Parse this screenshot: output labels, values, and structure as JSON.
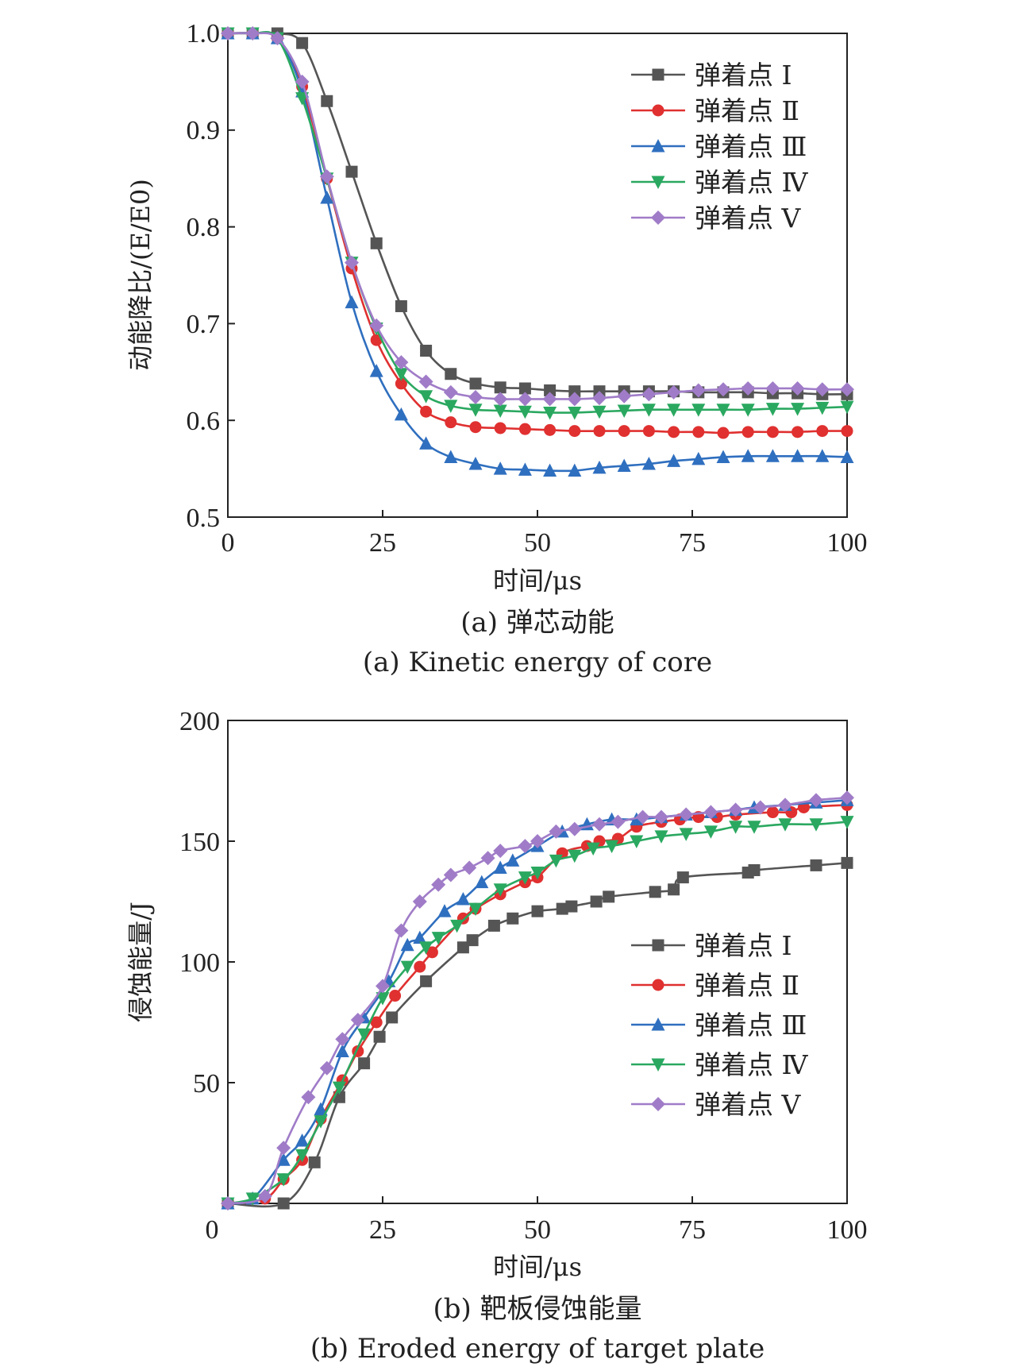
{
  "legend_labels": [
    "弹着点 Ⅰ",
    "弹着点 Ⅱ",
    "弹着点 Ⅲ",
    "弹着点 Ⅳ",
    "弹着点 Ⅴ"
  ],
  "colors": {
    "I": "#555555",
    "II": "#e03030",
    "III": "#2f6fbf",
    "IV": "#2aa860",
    "V": "#a07cc8",
    "axis": "#222222"
  },
  "chart_data": [
    {
      "type": "line",
      "title": "(a) 弹芯动能",
      "subtitle": "(a) Kinetic energy of core",
      "xlabel": "时间/μs",
      "ylabel": "动能降比/(E/E0)",
      "xlim": [
        0,
        100
      ],
      "ylim": [
        0.5,
        1.0
      ],
      "xticks": [
        0,
        25,
        50,
        75,
        100
      ],
      "yticks": [
        0.5,
        0.6,
        0.7,
        0.8,
        0.9,
        1.0
      ],
      "ytick_labels": [
        "0.5",
        "0.6",
        "0.7",
        "0.8",
        "0.9",
        "1.0"
      ],
      "legend_position": "top-right",
      "series": [
        {
          "name": "弹着点 Ⅰ",
          "marker": "square",
          "x": [
            0,
            4,
            8,
            12,
            16,
            20,
            24,
            28,
            32,
            36,
            40,
            44,
            48,
            52,
            56,
            60,
            64,
            68,
            72,
            76,
            80,
            84,
            88,
            92,
            96,
            100
          ],
          "y": [
            1.0,
            1.0,
            1.0,
            0.99,
            0.93,
            0.857,
            0.783,
            0.718,
            0.672,
            0.648,
            0.638,
            0.634,
            0.633,
            0.631,
            0.63,
            0.63,
            0.63,
            0.63,
            0.63,
            0.629,
            0.629,
            0.629,
            0.628,
            0.628,
            0.627,
            0.627
          ]
        },
        {
          "name": "弹着点 Ⅱ",
          "marker": "circle",
          "x": [
            0,
            4,
            8,
            12,
            16,
            20,
            24,
            28,
            32,
            36,
            40,
            44,
            48,
            52,
            56,
            60,
            64,
            68,
            72,
            76,
            80,
            84,
            88,
            92,
            96,
            100
          ],
          "y": [
            1.0,
            1.0,
            0.995,
            0.945,
            0.85,
            0.757,
            0.683,
            0.638,
            0.609,
            0.598,
            0.593,
            0.592,
            0.591,
            0.59,
            0.589,
            0.589,
            0.589,
            0.589,
            0.588,
            0.588,
            0.587,
            0.588,
            0.588,
            0.588,
            0.589,
            0.589
          ]
        },
        {
          "name": "弹着点 Ⅲ",
          "marker": "triangle-up",
          "x": [
            0,
            4,
            8,
            12,
            16,
            20,
            24,
            28,
            32,
            36,
            40,
            44,
            48,
            52,
            56,
            60,
            64,
            68,
            72,
            76,
            80,
            84,
            88,
            92,
            96,
            100
          ],
          "y": [
            1.0,
            1.0,
            0.995,
            0.94,
            0.83,
            0.722,
            0.651,
            0.606,
            0.576,
            0.562,
            0.555,
            0.55,
            0.549,
            0.548,
            0.548,
            0.551,
            0.553,
            0.555,
            0.558,
            0.56,
            0.562,
            0.563,
            0.563,
            0.563,
            0.563,
            0.562
          ]
        },
        {
          "name": "弹着点 Ⅳ",
          "marker": "triangle-down",
          "x": [
            0,
            4,
            8,
            12,
            16,
            20,
            24,
            28,
            32,
            36,
            40,
            44,
            48,
            52,
            56,
            60,
            64,
            68,
            72,
            76,
            80,
            84,
            88,
            92,
            96,
            100
          ],
          "y": [
            1.0,
            1.0,
            0.995,
            0.933,
            0.85,
            0.763,
            0.695,
            0.648,
            0.625,
            0.615,
            0.611,
            0.61,
            0.609,
            0.608,
            0.608,
            0.609,
            0.61,
            0.611,
            0.611,
            0.611,
            0.611,
            0.611,
            0.612,
            0.612,
            0.613,
            0.614
          ]
        },
        {
          "name": "弹着点 Ⅴ",
          "marker": "diamond",
          "x": [
            0,
            4,
            8,
            12,
            16,
            20,
            24,
            28,
            32,
            36,
            40,
            44,
            48,
            52,
            56,
            60,
            64,
            68,
            72,
            76,
            80,
            84,
            88,
            92,
            96,
            100
          ],
          "y": [
            1.0,
            1.0,
            0.995,
            0.95,
            0.852,
            0.763,
            0.698,
            0.66,
            0.64,
            0.629,
            0.624,
            0.622,
            0.622,
            0.622,
            0.622,
            0.623,
            0.625,
            0.627,
            0.629,
            0.631,
            0.632,
            0.633,
            0.633,
            0.633,
            0.632,
            0.632
          ]
        }
      ]
    },
    {
      "type": "line",
      "title": "(b) 靶板侵蚀能量",
      "subtitle": "(b) Eroded energy of target plate",
      "xlabel": "时间/μs",
      "ylabel": "侵蚀能量/J",
      "xlim": [
        0,
        100
      ],
      "ylim": [
        0,
        200
      ],
      "xticks": [
        0,
        25,
        50,
        75,
        100
      ],
      "yticks": [
        50,
        100,
        150,
        200
      ],
      "ytick_labels": [
        "50",
        "100",
        "150",
        "200"
      ],
      "x_origin_label": "0",
      "legend_position": "center-right",
      "series": [
        {
          "name": "弹着点 Ⅰ",
          "marker": "square",
          "x": [
            0,
            9,
            14,
            18,
            22,
            24.5,
            26.5,
            32,
            38,
            39.5,
            43,
            46,
            50,
            54,
            55.5,
            59.5,
            61.5,
            69,
            72,
            73.5,
            84,
            85,
            95,
            100
          ],
          "y": [
            0,
            0,
            17,
            44,
            58,
            69,
            77,
            92,
            106,
            109,
            115,
            118,
            121,
            122,
            123,
            125,
            127,
            129,
            130,
            135,
            137,
            138,
            140,
            141
          ]
        },
        {
          "name": "弹着点 Ⅱ",
          "marker": "circle",
          "x": [
            0,
            6,
            9,
            12,
            15,
            18.5,
            21,
            24,
            27,
            31,
            33,
            38,
            40,
            44,
            48,
            50,
            54,
            58,
            60,
            63,
            66,
            70,
            73,
            76,
            79,
            82,
            88,
            91,
            93,
            100
          ],
          "y": [
            0,
            2,
            10,
            18,
            35,
            51,
            63,
            75,
            86,
            98,
            104,
            118,
            122,
            128,
            133,
            135,
            145,
            148,
            150,
            151,
            156,
            158,
            159,
            160,
            160,
            161,
            162,
            162,
            164,
            165
          ]
        },
        {
          "name": "弹着点 Ⅲ",
          "marker": "triangle-up",
          "x": [
            0,
            4,
            9,
            12,
            15,
            18.5,
            22,
            26,
            29,
            31,
            35,
            38,
            41,
            44,
            46,
            50,
            54,
            58,
            62,
            66,
            70,
            74,
            78,
            82,
            85,
            90,
            95,
            100
          ],
          "y": [
            0,
            2,
            18,
            26,
            39,
            63,
            77,
            92,
            107,
            110,
            121,
            126,
            133,
            139,
            142,
            148,
            154,
            157,
            159,
            159,
            160,
            161,
            162,
            163,
            164,
            165,
            166,
            167
          ]
        },
        {
          "name": "弹着点 Ⅳ",
          "marker": "triangle-down",
          "x": [
            0,
            4,
            9,
            12,
            15,
            18,
            22,
            25,
            29,
            32,
            34,
            37,
            40,
            44,
            48,
            50,
            53,
            56,
            59,
            62,
            66,
            70,
            74,
            78,
            82,
            85,
            90,
            95,
            100
          ],
          "y": [
            0,
            2,
            10,
            20,
            34,
            48,
            70,
            85,
            98,
            106,
            110,
            115,
            122,
            130,
            135,
            137,
            142,
            144,
            147,
            148,
            150,
            152,
            153,
            154,
            156,
            156,
            157,
            157,
            158
          ]
        },
        {
          "name": "弹着点 Ⅴ",
          "marker": "diamond",
          "x": [
            0,
            6,
            9,
            13,
            16,
            18.5,
            21,
            25,
            28,
            31,
            34,
            36,
            39,
            42,
            44,
            48,
            50,
            53,
            56,
            60,
            63,
            67,
            70,
            74,
            78,
            82,
            86,
            90,
            95,
            100
          ],
          "y": [
            0,
            3,
            23,
            44,
            56,
            68,
            76,
            90,
            113,
            125,
            132,
            136,
            139,
            143,
            146,
            148,
            150,
            154,
            155,
            157,
            158,
            160,
            160,
            161,
            162,
            163,
            164,
            165,
            167,
            168
          ]
        }
      ]
    }
  ]
}
